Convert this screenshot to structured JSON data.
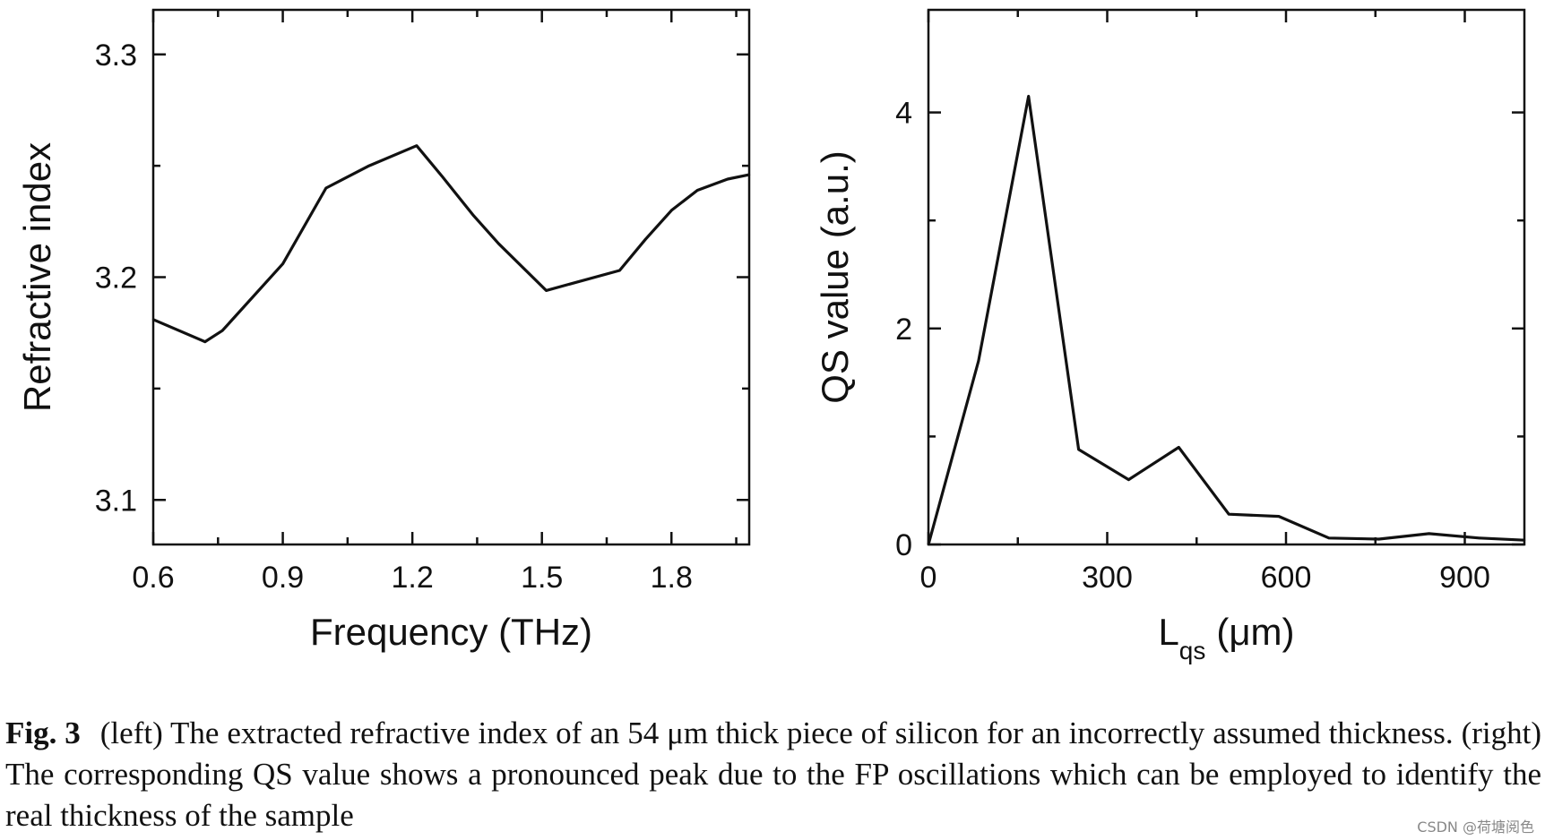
{
  "chart_data": [
    {
      "type": "line",
      "title": "",
      "xlabel": "Frequency (THz)",
      "ylabel": "Refractive index",
      "xlim": [
        0.6,
        1.98
      ],
      "ylim": [
        3.08,
        3.32
      ],
      "xticks": [
        0.6,
        0.9,
        1.2,
        1.5,
        1.8
      ],
      "xtick_labels": [
        "0.6",
        "0.9",
        "1.2",
        "1.5",
        "1.8"
      ],
      "yticks": [
        3.1,
        3.2,
        3.3
      ],
      "ytick_labels": [
        "3.1",
        "3.2",
        "3.3"
      ],
      "series": [
        {
          "name": "refractive index",
          "x": [
            0.6,
            0.72,
            0.76,
            0.9,
            1.0,
            1.1,
            1.21,
            1.27,
            1.34,
            1.4,
            1.51,
            1.68,
            1.74,
            1.8,
            1.86,
            1.93,
            1.98
          ],
          "y": [
            3.181,
            3.171,
            3.176,
            3.206,
            3.24,
            3.25,
            3.259,
            3.245,
            3.228,
            3.215,
            3.194,
            3.203,
            3.217,
            3.23,
            3.239,
            3.244,
            3.246
          ]
        }
      ]
    },
    {
      "type": "line",
      "title": "",
      "xlabel_main": "L",
      "xlabel_sub": "qs",
      "xlabel_unit": "(μm)",
      "ylabel": "QS value (a.u.)",
      "xlim": [
        0,
        1000
      ],
      "ylim": [
        0,
        4.95
      ],
      "xticks": [
        0,
        300,
        600,
        900
      ],
      "xtick_labels": [
        "0",
        "300",
        "600",
        "900"
      ],
      "yticks": [
        0,
        2,
        4
      ],
      "ytick_labels": [
        "0",
        "2",
        "4"
      ],
      "series": [
        {
          "name": "QS value",
          "x": [
            0,
            84,
            168,
            252,
            336,
            420,
            504,
            588,
            672,
            756,
            840,
            924,
            1000
          ],
          "y": [
            0.0,
            1.7,
            4.15,
            0.88,
            0.6,
            0.9,
            0.28,
            0.26,
            0.06,
            0.05,
            0.1,
            0.06,
            0.04
          ]
        }
      ]
    }
  ],
  "caption": {
    "label": "Fig. 3",
    "text": "(left) The extracted refractive index of an 54 μm thick piece of silicon for an incorrectly assumed thickness. (right) The corresponding QS value shows a pronounced peak due to the FP oscillations which can be employed to identify the real thickness of the sample"
  },
  "watermark": "CSDN @荷塘阅色"
}
